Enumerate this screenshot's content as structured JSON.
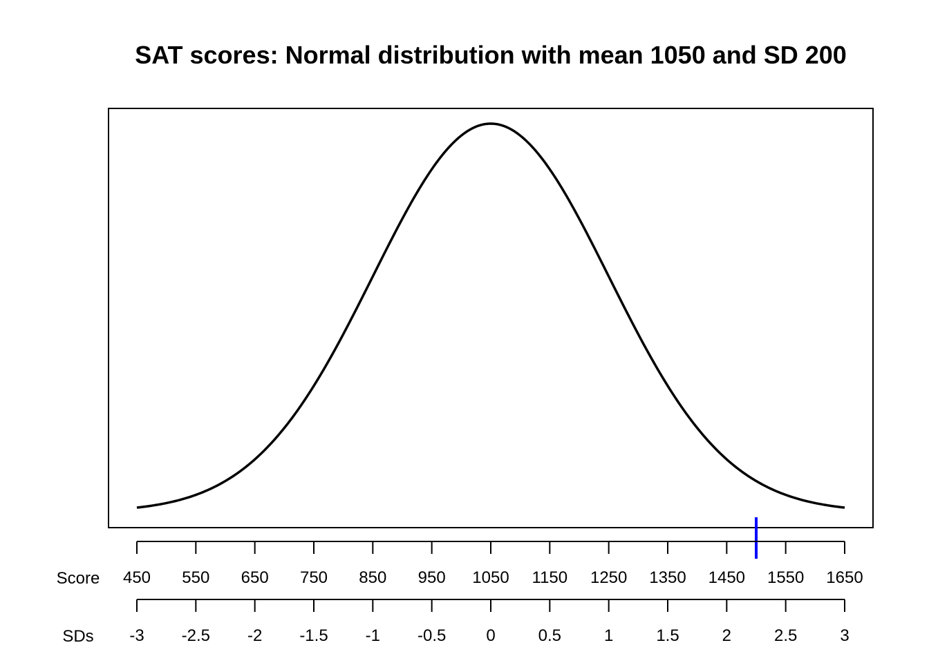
{
  "chart_data": {
    "type": "line",
    "title": "SAT scores: Normal distribution with mean 1050 and SD 200",
    "mean": 1050,
    "sd": 200,
    "xlim": [
      450,
      1650
    ],
    "series": [
      {
        "color": "#000000"
      }
    ],
    "axes": [
      {
        "label": "Score",
        "ticks": [
          "450",
          "550",
          "650",
          "750",
          "850",
          "950",
          "1050",
          "1150",
          "1250",
          "1350",
          "1450",
          "1550",
          "1650"
        ]
      },
      {
        "label": "SDs",
        "ticks": [
          "-3",
          "-2.5",
          "-2",
          "-1.5",
          "-1",
          "-0.5",
          "0",
          "0.5",
          "1",
          "1.5",
          "2",
          "2.5",
          "3"
        ]
      }
    ],
    "marker": {
      "x": 1500,
      "color": "#0000ff"
    }
  }
}
